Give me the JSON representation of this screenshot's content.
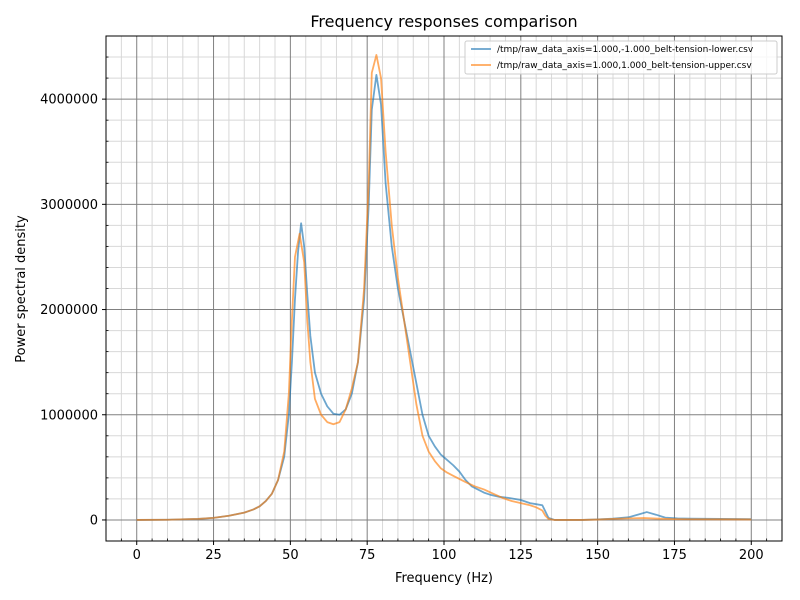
{
  "chart_data": {
    "type": "line",
    "title": "Frequency responses comparison",
    "xlabel": "Frequency (Hz)",
    "ylabel": "Power spectral density",
    "xlim": [
      -10,
      210
    ],
    "ylim": [
      -200000,
      4600000
    ],
    "x_ticks": [
      0,
      25,
      50,
      75,
      100,
      125,
      150,
      175,
      200
    ],
    "y_ticks": [
      0,
      1000000,
      2000000,
      3000000,
      4000000
    ],
    "x_tick_labels": [
      "0",
      "25",
      "50",
      "75",
      "100",
      "125",
      "150",
      "175",
      "200"
    ],
    "y_tick_labels": [
      "0",
      "1000000",
      "2000000",
      "3000000",
      "4000000"
    ],
    "grid": true,
    "minor_grid": true,
    "legend_position": "top-right",
    "series": [
      {
        "name": "/tmp/raw_data_axis=1.000,-1.000_belt-tension-lower.csv",
        "color": "#1f77b4",
        "points": [
          [
            0,
            0
          ],
          [
            10,
            2000
          ],
          [
            20,
            10000
          ],
          [
            25,
            20000
          ],
          [
            30,
            40000
          ],
          [
            35,
            70000
          ],
          [
            38,
            100000
          ],
          [
            40,
            130000
          ],
          [
            42,
            180000
          ],
          [
            44,
            250000
          ],
          [
            46,
            380000
          ],
          [
            48,
            600000
          ],
          [
            49.5,
            1000000
          ],
          [
            50.5,
            1500000
          ],
          [
            51.5,
            2100000
          ],
          [
            52.5,
            2550000
          ],
          [
            53.5,
            2820000
          ],
          [
            54.5,
            2600000
          ],
          [
            55.5,
            2150000
          ],
          [
            56.5,
            1750000
          ],
          [
            58,
            1400000
          ],
          [
            60,
            1200000
          ],
          [
            62,
            1080000
          ],
          [
            64,
            1010000
          ],
          [
            66,
            1000000
          ],
          [
            68,
            1050000
          ],
          [
            70,
            1200000
          ],
          [
            72,
            1500000
          ],
          [
            74,
            2100000
          ],
          [
            75.5,
            3000000
          ],
          [
            76.5,
            3900000
          ],
          [
            78,
            4230000
          ],
          [
            79.5,
            3950000
          ],
          [
            81,
            3200000
          ],
          [
            83,
            2600000
          ],
          [
            85,
            2200000
          ],
          [
            87,
            1900000
          ],
          [
            89,
            1600000
          ],
          [
            91,
            1300000
          ],
          [
            93,
            1000000
          ],
          [
            95,
            800000
          ],
          [
            97,
            700000
          ],
          [
            99,
            620000
          ],
          [
            101,
            570000
          ],
          [
            103,
            520000
          ],
          [
            105,
            460000
          ],
          [
            107,
            380000
          ],
          [
            109,
            320000
          ],
          [
            111,
            290000
          ],
          [
            113,
            260000
          ],
          [
            115,
            240000
          ],
          [
            118,
            220000
          ],
          [
            121,
            210000
          ],
          [
            125,
            190000
          ],
          [
            128,
            160000
          ],
          [
            130,
            150000
          ],
          [
            132,
            140000
          ],
          [
            133,
            80000
          ],
          [
            134,
            20000
          ],
          [
            136,
            0
          ],
          [
            145,
            0
          ],
          [
            150,
            5000
          ],
          [
            155,
            12000
          ],
          [
            160,
            25000
          ],
          [
            163,
            50000
          ],
          [
            166,
            75000
          ],
          [
            169,
            50000
          ],
          [
            172,
            22000
          ],
          [
            176,
            15000
          ],
          [
            180,
            12000
          ],
          [
            190,
            10000
          ],
          [
            200,
            8000
          ]
        ]
      },
      {
        "name": "/tmp/raw_data_axis=1.000,1.000_belt-tension-upper.csv",
        "color": "#ff7f0e",
        "points": [
          [
            0,
            0
          ],
          [
            10,
            2000
          ],
          [
            20,
            10000
          ],
          [
            25,
            20000
          ],
          [
            30,
            40000
          ],
          [
            35,
            70000
          ],
          [
            38,
            100000
          ],
          [
            40,
            130000
          ],
          [
            42,
            180000
          ],
          [
            44,
            250000
          ],
          [
            46,
            380000
          ],
          [
            48,
            650000
          ],
          [
            49.5,
            1200000
          ],
          [
            50.5,
            1900000
          ],
          [
            51.5,
            2500000
          ],
          [
            53,
            2720000
          ],
          [
            54.5,
            2450000
          ],
          [
            55.5,
            1900000
          ],
          [
            56.5,
            1500000
          ],
          [
            58,
            1150000
          ],
          [
            60,
            1000000
          ],
          [
            62,
            930000
          ],
          [
            64,
            910000
          ],
          [
            66,
            930000
          ],
          [
            68,
            1050000
          ],
          [
            70,
            1250000
          ],
          [
            72,
            1500000
          ],
          [
            74,
            2200000
          ],
          [
            75.5,
            3200000
          ],
          [
            76.5,
            4250000
          ],
          [
            78,
            4420000
          ],
          [
            79.5,
            4200000
          ],
          [
            81,
            3500000
          ],
          [
            83,
            2800000
          ],
          [
            85,
            2300000
          ],
          [
            87,
            1900000
          ],
          [
            89,
            1500000
          ],
          [
            91,
            1100000
          ],
          [
            93,
            800000
          ],
          [
            95,
            650000
          ],
          [
            97,
            560000
          ],
          [
            99,
            490000
          ],
          [
            101,
            450000
          ],
          [
            103,
            420000
          ],
          [
            105,
            390000
          ],
          [
            107,
            360000
          ],
          [
            110,
            320000
          ],
          [
            113,
            290000
          ],
          [
            116,
            250000
          ],
          [
            119,
            210000
          ],
          [
            122,
            180000
          ],
          [
            125,
            160000
          ],
          [
            128,
            140000
          ],
          [
            130,
            120000
          ],
          [
            132,
            90000
          ],
          [
            133,
            40000
          ],
          [
            134,
            10000
          ],
          [
            136,
            0
          ],
          [
            145,
            0
          ],
          [
            150,
            4000
          ],
          [
            155,
            10000
          ],
          [
            160,
            15000
          ],
          [
            165,
            18000
          ],
          [
            170,
            12000
          ],
          [
            175,
            8000
          ],
          [
            180,
            7000
          ],
          [
            190,
            6000
          ],
          [
            200,
            5000
          ]
        ]
      }
    ]
  }
}
